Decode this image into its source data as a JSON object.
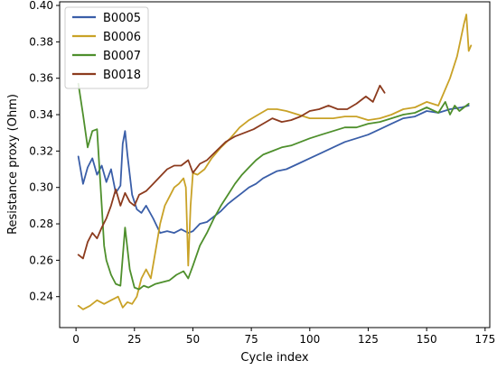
{
  "chart_data": {
    "type": "line",
    "xlabel": "Cycle index",
    "ylabel": "Resistance proxy (Ohm)",
    "xlim": [
      -7,
      177
    ],
    "ylim": [
      0.223,
      0.402
    ],
    "xticks": [
      0,
      25,
      50,
      75,
      100,
      125,
      150,
      175
    ],
    "yticks": [
      0.24,
      0.26,
      0.28,
      0.3,
      0.32,
      0.34,
      0.36,
      0.38,
      0.4
    ],
    "yticks_labels": [
      "0.24",
      "0.26",
      "0.28",
      "0.30",
      "0.32",
      "0.34",
      "0.36",
      "0.38",
      "0.40"
    ],
    "grid": false,
    "legend": "top-left",
    "series": [
      {
        "name": "B0005",
        "color": "#3a5ea8",
        "x": [
          1,
          3,
          5,
          7,
          9,
          11,
          13,
          15,
          17,
          19,
          20,
          21,
          22,
          24,
          26,
          28,
          30,
          33,
          36,
          39,
          42,
          45,
          48,
          50,
          53,
          56,
          59,
          62,
          65,
          68,
          71,
          74,
          77,
          80,
          83,
          86,
          90,
          95,
          100,
          105,
          110,
          115,
          120,
          125,
          130,
          135,
          140,
          145,
          150,
          155,
          160,
          165,
          168
        ],
        "y": [
          0.317,
          0.302,
          0.311,
          0.316,
          0.307,
          0.312,
          0.303,
          0.31,
          0.297,
          0.301,
          0.324,
          0.331,
          0.318,
          0.296,
          0.288,
          0.286,
          0.29,
          0.283,
          0.275,
          0.276,
          0.275,
          0.277,
          0.275,
          0.276,
          0.28,
          0.281,
          0.284,
          0.287,
          0.291,
          0.294,
          0.297,
          0.3,
          0.302,
          0.305,
          0.307,
          0.309,
          0.31,
          0.313,
          0.316,
          0.319,
          0.322,
          0.325,
          0.327,
          0.329,
          0.332,
          0.335,
          0.338,
          0.339,
          0.342,
          0.341,
          0.343,
          0.344,
          0.345
        ]
      },
      {
        "name": "B0006",
        "color": "#c9a227",
        "x": [
          1,
          3,
          6,
          9,
          12,
          15,
          18,
          20,
          22,
          24,
          26,
          28,
          30,
          32,
          34,
          36,
          38,
          40,
          42,
          44,
          46,
          47,
          48,
          49,
          50,
          52,
          55,
          58,
          62,
          66,
          70,
          74,
          78,
          82,
          86,
          90,
          95,
          100,
          105,
          110,
          115,
          120,
          125,
          130,
          135,
          140,
          145,
          150,
          155,
          160,
          163,
          166,
          167,
          168,
          169
        ],
        "y": [
          0.235,
          0.233,
          0.235,
          0.238,
          0.236,
          0.238,
          0.24,
          0.234,
          0.237,
          0.236,
          0.24,
          0.25,
          0.255,
          0.25,
          0.265,
          0.28,
          0.29,
          0.295,
          0.3,
          0.302,
          0.305,
          0.3,
          0.257,
          0.29,
          0.308,
          0.307,
          0.31,
          0.316,
          0.322,
          0.327,
          0.333,
          0.337,
          0.34,
          0.343,
          0.343,
          0.342,
          0.34,
          0.338,
          0.338,
          0.338,
          0.339,
          0.339,
          0.337,
          0.338,
          0.34,
          0.343,
          0.344,
          0.347,
          0.345,
          0.36,
          0.372,
          0.39,
          0.395,
          0.375,
          0.378
        ]
      },
      {
        "name": "B0007",
        "color": "#4e8f2c",
        "x": [
          1,
          3,
          5,
          7,
          9,
          11,
          12,
          13,
          15,
          17,
          19,
          21,
          23,
          25,
          27,
          29,
          31,
          34,
          37,
          40,
          43,
          46,
          48,
          50,
          53,
          56,
          59,
          62,
          65,
          68,
          71,
          74,
          77,
          80,
          84,
          88,
          92,
          96,
          100,
          105,
          110,
          115,
          120,
          125,
          130,
          135,
          140,
          145,
          150,
          155,
          158,
          160,
          162,
          164,
          166,
          168
        ],
        "y": [
          0.357,
          0.34,
          0.322,
          0.331,
          0.332,
          0.29,
          0.268,
          0.26,
          0.252,
          0.247,
          0.246,
          0.278,
          0.255,
          0.245,
          0.244,
          0.246,
          0.245,
          0.247,
          0.248,
          0.249,
          0.252,
          0.254,
          0.25,
          0.257,
          0.268,
          0.275,
          0.283,
          0.29,
          0.296,
          0.302,
          0.307,
          0.311,
          0.315,
          0.318,
          0.32,
          0.322,
          0.323,
          0.325,
          0.327,
          0.329,
          0.331,
          0.333,
          0.333,
          0.335,
          0.336,
          0.338,
          0.34,
          0.341,
          0.344,
          0.341,
          0.347,
          0.34,
          0.345,
          0.342,
          0.344,
          0.346
        ]
      },
      {
        "name": "B0018",
        "color": "#8c3b1e",
        "x": [
          1,
          3,
          5,
          7,
          9,
          11,
          13,
          15,
          17,
          19,
          21,
          23,
          25,
          27,
          30,
          33,
          36,
          39,
          42,
          45,
          48,
          50,
          53,
          56,
          60,
          64,
          68,
          72,
          76,
          80,
          84,
          88,
          92,
          96,
          100,
          104,
          108,
          112,
          116,
          120,
          124,
          127,
          130,
          132
        ],
        "y": [
          0.263,
          0.261,
          0.27,
          0.275,
          0.272,
          0.278,
          0.283,
          0.29,
          0.299,
          0.29,
          0.297,
          0.292,
          0.29,
          0.296,
          0.298,
          0.302,
          0.306,
          0.31,
          0.312,
          0.312,
          0.315,
          0.308,
          0.313,
          0.315,
          0.32,
          0.325,
          0.328,
          0.33,
          0.332,
          0.335,
          0.338,
          0.336,
          0.337,
          0.339,
          0.342,
          0.343,
          0.345,
          0.343,
          0.343,
          0.346,
          0.35,
          0.347,
          0.356,
          0.352
        ]
      }
    ]
  }
}
